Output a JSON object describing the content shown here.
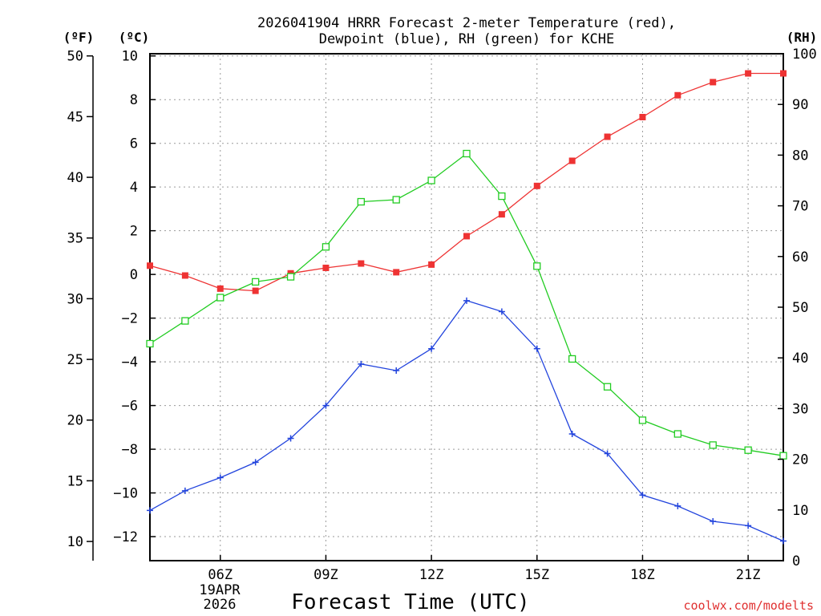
{
  "chart_data": {
    "type": "line",
    "title_line1": "2026041904 HRRR Forecast 2-meter Temperature (red),",
    "title_line2": "Dewpoint (blue), RH (green) for KCHE",
    "xlabel": "Forecast Time (UTC)",
    "date_day": "19APR",
    "date_year": "2026",
    "credit": "coolwx.com/modelts",
    "units": {
      "fahrenheit": "(ºF)",
      "celsius": "(ºC)",
      "rh": "(RH)"
    },
    "x_hours": [
      4,
      5,
      6,
      7,
      8,
      9,
      10,
      11,
      12,
      13,
      14,
      15,
      16,
      17,
      18,
      19,
      20,
      21,
      22
    ],
    "x_range": [
      4,
      22
    ],
    "x_ticks": [
      {
        "hour": 6,
        "label": "06Z"
      },
      {
        "hour": 9,
        "label": "09Z"
      },
      {
        "hour": 12,
        "label": "12Z"
      },
      {
        "hour": 15,
        "label": "15Z"
      },
      {
        "hour": 18,
        "label": "18Z"
      },
      {
        "hour": 21,
        "label": "21Z"
      }
    ],
    "ylim_celsius": [
      -13.1,
      10.1
    ],
    "ylim_rh": [
      0,
      100
    ],
    "celsius_ticks": [
      "10",
      "8",
      "6",
      "4",
      "2",
      "0",
      "−2",
      "−4",
      "−6",
      "−8",
      "−10",
      "−12"
    ],
    "celsius_tick_values": [
      10,
      8,
      6,
      4,
      2,
      0,
      -2,
      -4,
      -6,
      -8,
      -10,
      -12
    ],
    "fahrenheit_ticks": [
      "50",
      "45",
      "40",
      "35",
      "30",
      "25",
      "20",
      "15",
      "10"
    ],
    "fahrenheit_tick_values": [
      50,
      45,
      40,
      35,
      30,
      25,
      20,
      15,
      10
    ],
    "rh_ticks": [
      "100",
      "90",
      "80",
      "70",
      "60",
      "50",
      "40",
      "30",
      "20",
      "10",
      "0"
    ],
    "rh_tick_values": [
      100,
      90,
      80,
      70,
      60,
      50,
      40,
      30,
      20,
      10,
      0
    ],
    "series": [
      {
        "name": "2-meter Temperature",
        "color": "#ee3333",
        "marker": "filled-square",
        "axis": "celsius",
        "values": [
          0.4,
          -0.05,
          -0.65,
          -0.75,
          0.05,
          0.3,
          0.5,
          0.1,
          0.45,
          1.75,
          2.75,
          4.05,
          5.2,
          6.3,
          7.2,
          8.2,
          8.8,
          9.2,
          9.2
        ]
      },
      {
        "name": "Dewpoint",
        "color": "#2244dd",
        "marker": "plus",
        "axis": "celsius",
        "values": [
          -10.8,
          -9.9,
          -9.3,
          -8.6,
          -7.5,
          -6.0,
          -4.1,
          -4.4,
          -3.4,
          -1.2,
          -1.7,
          -3.4,
          -7.3,
          -8.2,
          -10.1,
          -10.6,
          -11.3,
          -11.5,
          -12.2
        ]
      },
      {
        "name": "Relative Humidity",
        "color": "#22cc22",
        "marker": "open-square",
        "axis": "rh",
        "values": [
          42.8,
          47.3,
          51.9,
          55.0,
          56.0,
          61.9,
          70.8,
          71.2,
          75.0,
          80.3,
          71.9,
          58.1,
          39.8,
          34.3,
          27.7,
          25.0,
          22.8,
          21.8,
          20.7
        ]
      }
    ]
  }
}
